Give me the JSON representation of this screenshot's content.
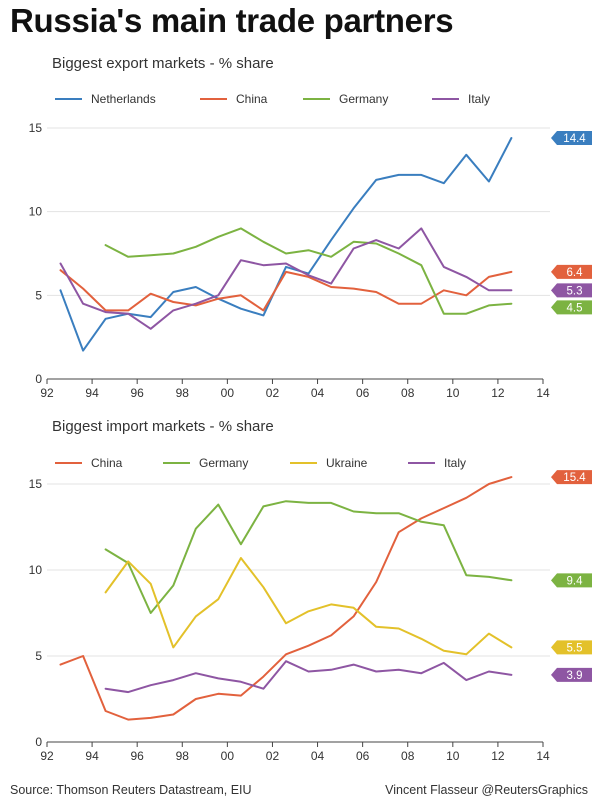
{
  "title": "Russia's main trade partners",
  "footer": {
    "source": "Source: Thomson Reuters Datastream, EIU",
    "credit": "Vincent Flasseur @ReutersGraphics"
  },
  "colors": {
    "Netherlands": "#3a7ebf",
    "China": "#e2613d",
    "Germany": "#7cb342",
    "Italy": "#8e56a3",
    "Ukraine": "#e3c12a"
  },
  "chart_data": [
    {
      "type": "line",
      "title": "Biggest export markets - % share",
      "xlim": [
        92,
        114
      ],
      "ylim": [
        0,
        15
      ],
      "x_ticks": [
        "92",
        "94",
        "96",
        "98",
        "00",
        "02",
        "04",
        "06",
        "08",
        "10",
        "12",
        "14"
      ],
      "y_ticks": [
        0,
        5,
        10,
        15
      ],
      "grid": true,
      "legend_position": "top",
      "series": [
        {
          "name": "Netherlands",
          "x": [
            92.6,
            93.6,
            94.6,
            95.6,
            96.6,
            97.6,
            98.6,
            99.6,
            100.6,
            101.6,
            102.6,
            103.6,
            104.6,
            105.6,
            106.6,
            107.6,
            108.6,
            109.6,
            110.6,
            111.6,
            112.6
          ],
          "y": [
            5.3,
            1.7,
            3.6,
            3.9,
            3.7,
            5.2,
            5.5,
            4.8,
            4.2,
            3.8,
            6.7,
            6.3,
            8.3,
            10.2,
            11.9,
            12.2,
            12.2,
            11.7,
            13.4,
            11.8,
            14.4
          ],
          "end_label": "14.4"
        },
        {
          "name": "China",
          "x": [
            92.6,
            93.6,
            94.6,
            95.6,
            96.6,
            97.6,
            98.6,
            99.6,
            100.6,
            101.6,
            102.6,
            103.6,
            104.6,
            105.6,
            106.6,
            107.6,
            108.6,
            109.6,
            110.6,
            111.6,
            112.6
          ],
          "y": [
            6.5,
            5.4,
            4.1,
            4.1,
            5.1,
            4.6,
            4.4,
            4.8,
            5.0,
            4.1,
            6.4,
            6.1,
            5.5,
            5.4,
            5.2,
            4.5,
            4.5,
            5.3,
            5.0,
            6.1,
            6.4
          ],
          "end_label": "6.4"
        },
        {
          "name": "Germany",
          "x": [
            94.6,
            95.6,
            96.6,
            97.6,
            98.6,
            99.6,
            100.6,
            101.6,
            102.6,
            103.6,
            104.6,
            105.6,
            106.6,
            107.6,
            108.6,
            109.6,
            110.6,
            111.6,
            112.6
          ],
          "y": [
            8.0,
            7.3,
            7.4,
            7.5,
            7.9,
            8.5,
            9.0,
            8.2,
            7.5,
            7.7,
            7.3,
            8.2,
            8.1,
            7.5,
            6.8,
            3.9,
            3.9,
            4.4,
            4.5
          ],
          "end_label": "4.5"
        },
        {
          "name": "Italy",
          "x": [
            92.6,
            93.6,
            94.6,
            95.6,
            96.6,
            97.6,
            98.6,
            99.6,
            100.6,
            101.6,
            102.6,
            103.6,
            104.6,
            105.6,
            106.6,
            107.6,
            108.6,
            109.6,
            110.6,
            111.6,
            112.6
          ],
          "y": [
            6.9,
            4.5,
            4.0,
            3.9,
            3.0,
            4.1,
            4.5,
            5.0,
            7.1,
            6.8,
            6.9,
            6.2,
            5.7,
            7.8,
            8.3,
            7.8,
            9.0,
            6.7,
            6.1,
            5.3,
            5.3
          ],
          "end_label": "5.3"
        }
      ]
    },
    {
      "type": "line",
      "title": "Biggest import markets - % share",
      "xlim": [
        92,
        114
      ],
      "ylim": [
        0,
        15
      ],
      "x_ticks": [
        "92",
        "94",
        "96",
        "98",
        "00",
        "02",
        "04",
        "06",
        "08",
        "10",
        "12",
        "14"
      ],
      "y_ticks": [
        0,
        5,
        10,
        15
      ],
      "grid": true,
      "legend_position": "top",
      "series": [
        {
          "name": "China",
          "x": [
            92.6,
            93.6,
            94.6,
            95.6,
            96.6,
            97.6,
            98.6,
            99.6,
            100.6,
            101.6,
            102.6,
            103.6,
            104.6,
            105.6,
            106.6,
            107.6,
            108.6,
            109.6,
            110.6,
            111.6,
            112.6
          ],
          "y": [
            4.5,
            5.0,
            1.8,
            1.3,
            1.4,
            1.6,
            2.5,
            2.8,
            2.7,
            3.8,
            5.1,
            5.6,
            6.2,
            7.3,
            9.3,
            12.2,
            13.0,
            13.6,
            14.2,
            15.0,
            15.4
          ],
          "end_label": "15.4"
        },
        {
          "name": "Germany",
          "x": [
            94.6,
            95.6,
            96.6,
            97.6,
            98.6,
            99.6,
            100.6,
            101.6,
            102.6,
            103.6,
            104.6,
            105.6,
            106.6,
            107.6,
            108.6,
            109.6,
            110.6,
            111.6,
            112.6
          ],
          "y": [
            11.2,
            10.4,
            7.5,
            9.1,
            12.4,
            13.8,
            11.5,
            13.7,
            14.0,
            13.9,
            13.9,
            13.4,
            13.3,
            13.3,
            12.8,
            12.6,
            9.7,
            9.6,
            9.4
          ],
          "end_label": "9.4"
        },
        {
          "name": "Ukraine",
          "x": [
            94.6,
            95.6,
            96.6,
            97.6,
            98.6,
            99.6,
            100.6,
            101.6,
            102.6,
            103.6,
            104.6,
            105.6,
            106.6,
            107.6,
            108.6,
            109.6,
            110.6,
            111.6,
            112.6
          ],
          "y": [
            8.7,
            10.5,
            9.2,
            5.5,
            7.3,
            8.3,
            10.7,
            9.0,
            6.9,
            7.6,
            8.0,
            7.8,
            6.7,
            6.6,
            6.0,
            5.3,
            5.1,
            6.3,
            5.5
          ],
          "end_label": "5.5"
        },
        {
          "name": "Italy",
          "x": [
            94.6,
            95.6,
            96.6,
            97.6,
            98.6,
            99.6,
            100.6,
            101.6,
            102.6,
            103.6,
            104.6,
            105.6,
            106.6,
            107.6,
            108.6,
            109.6,
            110.6,
            111.6,
            112.6
          ],
          "y": [
            3.1,
            2.9,
            3.3,
            3.6,
            4.0,
            3.7,
            3.5,
            3.1,
            4.7,
            4.1,
            4.2,
            4.5,
            4.1,
            4.2,
            4.0,
            4.6,
            3.6,
            4.1,
            3.9
          ],
          "end_label": "3.9"
        }
      ]
    }
  ]
}
